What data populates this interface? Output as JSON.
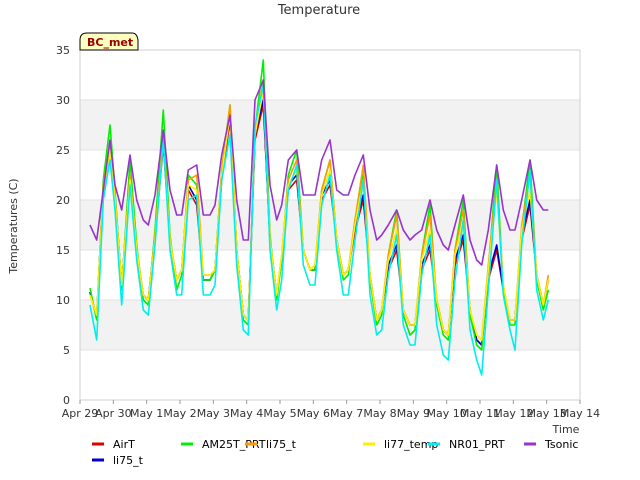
{
  "chart_data": {
    "type": "line",
    "title": "Temperature",
    "xlabel": "Time",
    "ylabel": "Temperatures (C)",
    "badge": "BC_met",
    "xlim": [
      0,
      15
    ],
    "ylim": [
      0,
      35
    ],
    "x_ticks": [
      {
        "v": 0,
        "label": "Apr 29"
      },
      {
        "v": 1,
        "label": "Apr 30"
      },
      {
        "v": 2,
        "label": "May 1"
      },
      {
        "v": 3,
        "label": "May 2"
      },
      {
        "v": 4,
        "label": "May 3"
      },
      {
        "v": 5,
        "label": "May 4"
      },
      {
        "v": 6,
        "label": "May 5"
      },
      {
        "v": 7,
        "label": "May 6"
      },
      {
        "v": 8,
        "label": "May 7"
      },
      {
        "v": 9,
        "label": "May 8"
      },
      {
        "v": 10,
        "label": "May 9"
      },
      {
        "v": 11,
        "label": "May 10"
      },
      {
        "v": 12,
        "label": "May 11"
      },
      {
        "v": 13,
        "label": "May 12"
      },
      {
        "v": 14,
        "label": "May 13"
      },
      {
        "v": 15,
        "label": "May 14"
      }
    ],
    "y_ticks": [
      0,
      5,
      10,
      15,
      20,
      25,
      30,
      35
    ],
    "bands": [
      [
        5,
        10
      ],
      [
        15,
        20
      ],
      [
        25,
        30
      ]
    ],
    "grid": true,
    "legend_position": "bottom",
    "x": [
      0.3,
      0.5,
      0.7,
      0.9,
      1.05,
      1.25,
      1.5,
      1.7,
      1.9,
      2.05,
      2.25,
      2.5,
      2.7,
      2.9,
      3.05,
      3.25,
      3.5,
      3.7,
      3.9,
      4.05,
      4.25,
      4.5,
      4.7,
      4.9,
      5.05,
      5.25,
      5.5,
      5.7,
      5.9,
      6.05,
      6.25,
      6.5,
      6.7,
      6.9,
      7.05,
      7.25,
      7.5,
      7.7,
      7.9,
      8.05,
      8.25,
      8.5,
      8.7,
      8.9,
      9.05,
      9.25,
      9.5,
      9.7,
      9.9,
      10.05,
      10.25,
      10.5,
      10.7,
      10.9,
      11.05,
      11.25,
      11.5,
      11.7,
      11.9,
      12.05,
      12.25,
      12.5,
      12.7,
      12.9,
      13.05,
      13.25,
      13.5,
      13.7,
      13.9,
      14.05
    ],
    "series": [
      {
        "name": "AirT",
        "color": "#dd0000",
        "values": [
          10.8,
          8.2,
          21.0,
          25.0,
          20.0,
          11.5,
          22.0,
          15.0,
          10.5,
          10.0,
          16.0,
          25.5,
          16.0,
          12.0,
          13.0,
          21.0,
          19.5,
          12.0,
          12.0,
          13.0,
          22.0,
          28.0,
          15.0,
          8.5,
          8.0,
          26.0,
          29.5,
          16.0,
          10.5,
          14.0,
          21.0,
          22.0,
          15.0,
          13.0,
          13.0,
          20.0,
          21.5,
          16.0,
          12.5,
          13.0,
          17.0,
          20.0,
          12.5,
          8.0,
          9.0,
          13.0,
          15.0,
          9.0,
          7.5,
          7.5,
          13.0,
          15.0,
          10.0,
          7.0,
          6.5,
          13.5,
          16.0,
          9.0,
          6.0,
          5.5,
          12.0,
          15.0,
          11.0,
          8.0,
          8.0,
          16.0,
          19.5,
          12.5,
          9.5,
          12.0
        ]
      },
      {
        "name": "li75_t",
        "color": "#0000cc",
        "values": [
          10.8,
          8.3,
          21.5,
          25.5,
          20.5,
          11.5,
          22.5,
          15.0,
          10.5,
          10.0,
          16.5,
          26.0,
          16.0,
          12.0,
          13.0,
          21.5,
          20.0,
          12.0,
          12.0,
          13.0,
          22.5,
          28.5,
          15.0,
          8.5,
          8.0,
          26.5,
          30.0,
          16.0,
          10.5,
          14.0,
          21.5,
          22.5,
          15.0,
          13.0,
          13.0,
          20.5,
          22.0,
          16.0,
          12.5,
          13.0,
          17.5,
          20.5,
          12.5,
          8.0,
          9.0,
          13.5,
          15.5,
          9.0,
          7.5,
          7.5,
          13.5,
          15.5,
          10.0,
          7.0,
          6.5,
          14.0,
          16.5,
          9.0,
          6.0,
          5.5,
          12.5,
          15.5,
          11.0,
          8.0,
          8.0,
          16.5,
          20.0,
          12.5,
          9.5,
          12.0
        ]
      },
      {
        "name": "AM25T_PRT",
        "color": "#00ee00",
        "values": [
          11.2,
          8.0,
          22.0,
          27.5,
          21.0,
          11.0,
          24.0,
          15.5,
          10.0,
          9.5,
          17.0,
          29.0,
          16.5,
          11.0,
          12.5,
          22.5,
          21.5,
          12.0,
          12.0,
          13.0,
          23.0,
          29.5,
          15.0,
          8.0,
          7.5,
          27.0,
          34.0,
          16.5,
          10.0,
          14.0,
          22.5,
          25.0,
          15.0,
          13.0,
          13.0,
          21.0,
          24.0,
          16.0,
          12.0,
          12.5,
          18.0,
          22.5,
          12.0,
          7.5,
          8.5,
          14.5,
          19.0,
          8.5,
          6.5,
          7.0,
          14.5,
          19.5,
          9.5,
          6.5,
          6.0,
          15.0,
          20.0,
          8.5,
          5.5,
          5.0,
          13.0,
          23.5,
          11.0,
          7.5,
          7.5,
          17.0,
          24.0,
          12.0,
          9.0,
          11.0
        ]
      },
      {
        "name": "li75_t",
        "color": "#ff9900",
        "values": [
          10.5,
          8.5,
          21.5,
          25.5,
          20.5,
          11.5,
          22.5,
          15.0,
          10.5,
          10.0,
          16.5,
          26.5,
          16.0,
          12.0,
          13.0,
          22.0,
          22.5,
          12.5,
          12.5,
          13.0,
          23.0,
          29.5,
          15.0,
          8.5,
          8.0,
          27.0,
          32.0,
          16.0,
          10.5,
          14.5,
          22.0,
          24.0,
          15.0,
          13.0,
          13.5,
          21.0,
          24.0,
          16.0,
          12.5,
          13.0,
          18.0,
          23.5,
          12.5,
          8.0,
          9.0,
          14.5,
          18.5,
          9.0,
          7.5,
          7.5,
          14.5,
          18.5,
          10.0,
          7.0,
          6.5,
          15.0,
          19.0,
          9.0,
          6.5,
          6.0,
          13.5,
          22.0,
          11.5,
          8.0,
          8.0,
          17.5,
          22.5,
          12.5,
          9.5,
          12.5
        ]
      },
      {
        "name": "li77_temp",
        "color": "#ffee00",
        "values": [
          10.5,
          8.5,
          21.0,
          25.0,
          20.0,
          11.5,
          22.0,
          15.0,
          10.5,
          10.0,
          16.0,
          26.0,
          16.0,
          12.0,
          13.0,
          21.5,
          21.0,
          12.5,
          12.5,
          13.0,
          22.5,
          28.5,
          15.0,
          8.5,
          8.0,
          26.5,
          31.0,
          16.0,
          10.5,
          14.5,
          21.5,
          23.0,
          15.0,
          13.0,
          13.5,
          20.5,
          23.0,
          16.0,
          12.5,
          13.0,
          17.5,
          22.0,
          12.5,
          8.0,
          9.0,
          14.0,
          17.0,
          9.0,
          7.5,
          7.5,
          14.0,
          17.0,
          10.0,
          7.0,
          6.5,
          14.5,
          18.0,
          9.0,
          6.5,
          6.0,
          13.0,
          21.0,
          11.5,
          8.0,
          8.0,
          17.0,
          21.0,
          12.5,
          9.5,
          12.0
        ]
      },
      {
        "name": "NR01_PRT",
        "color": "#00eeee",
        "values": [
          9.5,
          6.0,
          20.0,
          24.0,
          19.0,
          9.5,
          21.5,
          14.0,
          9.0,
          8.5,
          15.5,
          26.0,
          15.0,
          10.5,
          10.5,
          20.0,
          20.5,
          10.5,
          10.5,
          11.5,
          22.0,
          26.5,
          13.5,
          7.0,
          6.5,
          27.5,
          31.5,
          15.0,
          9.0,
          12.0,
          21.0,
          23.5,
          13.5,
          11.5,
          11.5,
          19.5,
          22.5,
          15.0,
          10.5,
          10.5,
          16.0,
          22.0,
          10.5,
          6.5,
          7.0,
          12.5,
          16.5,
          7.5,
          5.5,
          5.5,
          12.5,
          16.5,
          7.5,
          4.5,
          4.0,
          12.0,
          18.0,
          7.0,
          4.0,
          2.5,
          11.0,
          22.0,
          10.5,
          7.0,
          5.0,
          15.5,
          23.0,
          11.0,
          8.0,
          10.0
        ]
      },
      {
        "name": "Tsonic",
        "color": "#9933cc",
        "values": [
          17.5,
          16.0,
          21.0,
          26.0,
          21.5,
          19.0,
          24.5,
          20.0,
          18.0,
          17.5,
          20.5,
          27.0,
          21.0,
          18.5,
          18.5,
          23.0,
          23.5,
          18.5,
          18.5,
          19.5,
          24.5,
          28.5,
          20.0,
          16.0,
          16.0,
          30.0,
          32.0,
          21.5,
          18.0,
          19.5,
          24.0,
          25.0,
          20.5,
          20.5,
          20.5,
          24.0,
          26.0,
          21.0,
          20.5,
          20.5,
          22.5,
          24.5,
          19.0,
          16.0,
          16.5,
          17.5,
          19.0,
          17.0,
          16.0,
          16.5,
          17.0,
          20.0,
          17.0,
          15.5,
          15.0,
          17.5,
          20.5,
          16.0,
          14.0,
          13.5,
          17.0,
          23.5,
          19.0,
          17.0,
          17.0,
          20.0,
          24.0,
          20.0,
          19.0,
          19.0
        ]
      }
    ]
  }
}
